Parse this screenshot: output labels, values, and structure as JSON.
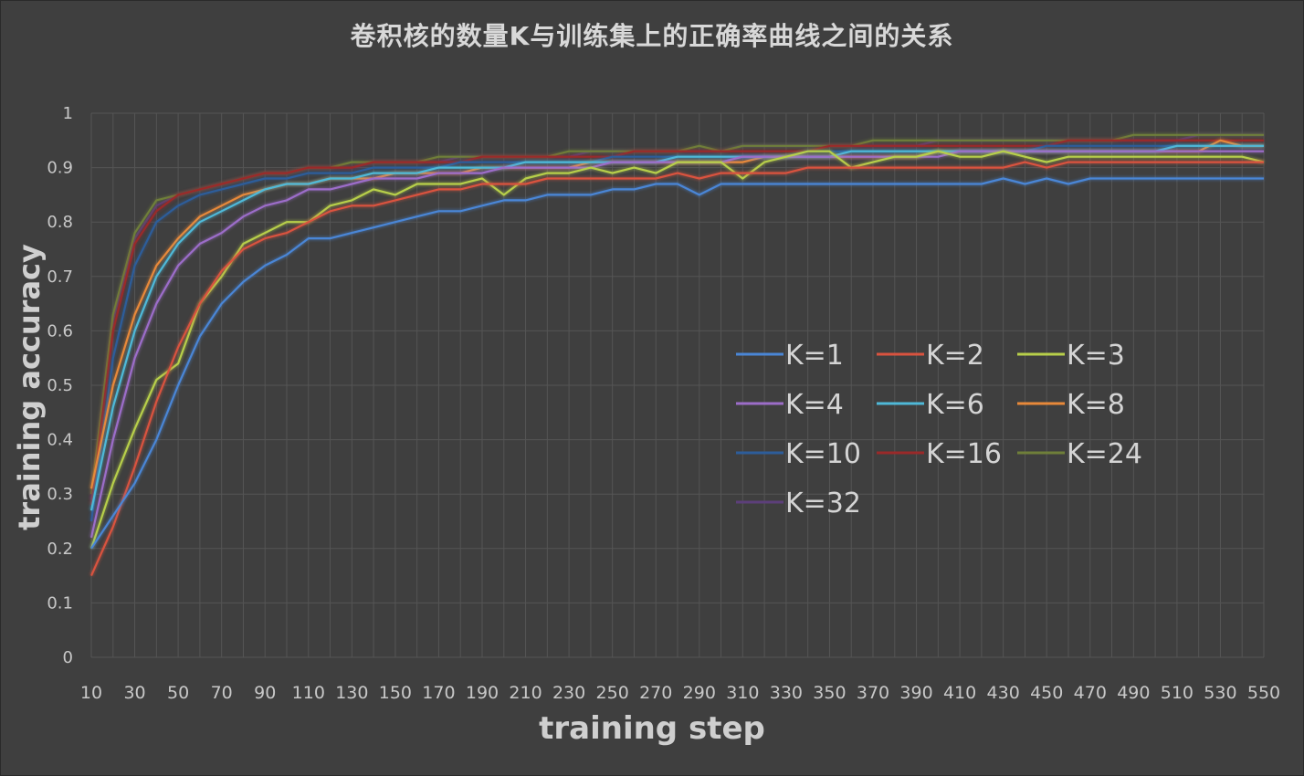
{
  "chart_data": {
    "type": "line",
    "title": "卷积核的数量K与训练集上的正确率曲线之间的关系",
    "xlabel": "training step",
    "ylabel": "training accuracy",
    "ylim": [
      0,
      1
    ],
    "yticks": [
      "0",
      "0.1",
      "0.2",
      "0.3",
      "0.4",
      "0.5",
      "0.6",
      "0.7",
      "0.8",
      "0.9",
      "1"
    ],
    "xtick_labels": [
      "10",
      "30",
      "50",
      "70",
      "90",
      "110",
      "130",
      "150",
      "170",
      "190",
      "210",
      "230",
      "250",
      "270",
      "290",
      "310",
      "330",
      "350",
      "370",
      "390",
      "410",
      "430",
      "450",
      "470",
      "490",
      "510",
      "530",
      "550"
    ],
    "grid": true,
    "legend_position": "center-right",
    "x": [
      10,
      20,
      30,
      40,
      50,
      60,
      70,
      80,
      90,
      100,
      110,
      120,
      130,
      140,
      150,
      160,
      170,
      180,
      190,
      200,
      210,
      220,
      230,
      240,
      250,
      260,
      270,
      280,
      290,
      300,
      310,
      320,
      330,
      340,
      350,
      360,
      370,
      380,
      390,
      400,
      410,
      420,
      430,
      440,
      450,
      460,
      470,
      480,
      490,
      500,
      510,
      520,
      530,
      540,
      550
    ],
    "series": [
      {
        "name": "K=1",
        "color": "#4a86d6",
        "values": [
          0.2,
          0.26,
          0.32,
          0.4,
          0.5,
          0.59,
          0.65,
          0.69,
          0.72,
          0.74,
          0.77,
          0.77,
          0.78,
          0.79,
          0.8,
          0.81,
          0.82,
          0.82,
          0.83,
          0.84,
          0.84,
          0.85,
          0.85,
          0.85,
          0.86,
          0.86,
          0.87,
          0.87,
          0.85,
          0.87,
          0.87,
          0.87,
          0.87,
          0.87,
          0.87,
          0.87,
          0.87,
          0.87,
          0.87,
          0.87,
          0.87,
          0.87,
          0.88,
          0.87,
          0.88,
          0.87,
          0.88,
          0.88,
          0.88,
          0.88,
          0.88,
          0.88,
          0.88,
          0.88,
          0.88
        ]
      },
      {
        "name": "K=2",
        "color": "#d9533f",
        "values": [
          0.15,
          0.24,
          0.35,
          0.47,
          0.57,
          0.65,
          0.71,
          0.75,
          0.77,
          0.78,
          0.8,
          0.82,
          0.83,
          0.83,
          0.84,
          0.85,
          0.86,
          0.86,
          0.87,
          0.87,
          0.87,
          0.88,
          0.88,
          0.88,
          0.88,
          0.88,
          0.88,
          0.89,
          0.88,
          0.89,
          0.89,
          0.89,
          0.89,
          0.9,
          0.9,
          0.9,
          0.9,
          0.9,
          0.9,
          0.9,
          0.9,
          0.9,
          0.9,
          0.91,
          0.9,
          0.91,
          0.91,
          0.91,
          0.91,
          0.91,
          0.91,
          0.91,
          0.91,
          0.91,
          0.91
        ]
      },
      {
        "name": "K=3",
        "color": "#b7cf4a",
        "values": [
          0.2,
          0.32,
          0.42,
          0.51,
          0.54,
          0.65,
          0.7,
          0.76,
          0.78,
          0.8,
          0.8,
          0.83,
          0.84,
          0.86,
          0.85,
          0.87,
          0.87,
          0.87,
          0.88,
          0.85,
          0.88,
          0.89,
          0.89,
          0.9,
          0.89,
          0.9,
          0.89,
          0.91,
          0.91,
          0.91,
          0.88,
          0.91,
          0.92,
          0.93,
          0.93,
          0.9,
          0.91,
          0.92,
          0.92,
          0.93,
          0.92,
          0.92,
          0.93,
          0.92,
          0.91,
          0.92,
          0.92,
          0.92,
          0.92,
          0.92,
          0.92,
          0.92,
          0.92,
          0.92,
          0.91
        ]
      },
      {
        "name": "K=4",
        "color": "#9c6dc9",
        "values": [
          0.22,
          0.4,
          0.55,
          0.65,
          0.72,
          0.76,
          0.78,
          0.81,
          0.83,
          0.84,
          0.86,
          0.86,
          0.87,
          0.88,
          0.88,
          0.88,
          0.89,
          0.89,
          0.89,
          0.9,
          0.9,
          0.9,
          0.9,
          0.9,
          0.91,
          0.91,
          0.91,
          0.91,
          0.91,
          0.91,
          0.92,
          0.92,
          0.92,
          0.92,
          0.92,
          0.92,
          0.92,
          0.92,
          0.92,
          0.92,
          0.93,
          0.93,
          0.93,
          0.93,
          0.93,
          0.93,
          0.93,
          0.93,
          0.93,
          0.93,
          0.93,
          0.93,
          0.93,
          0.93,
          0.93
        ]
      },
      {
        "name": "K=6",
        "color": "#4fb9d8",
        "values": [
          0.27,
          0.46,
          0.6,
          0.7,
          0.76,
          0.8,
          0.82,
          0.84,
          0.86,
          0.87,
          0.87,
          0.88,
          0.88,
          0.89,
          0.89,
          0.89,
          0.9,
          0.9,
          0.9,
          0.9,
          0.91,
          0.91,
          0.91,
          0.91,
          0.91,
          0.91,
          0.91,
          0.92,
          0.92,
          0.92,
          0.92,
          0.92,
          0.92,
          0.92,
          0.92,
          0.93,
          0.93,
          0.93,
          0.93,
          0.93,
          0.93,
          0.93,
          0.93,
          0.93,
          0.93,
          0.93,
          0.93,
          0.93,
          0.93,
          0.93,
          0.94,
          0.94,
          0.94,
          0.94,
          0.94
        ]
      },
      {
        "name": "K=8",
        "color": "#e8893a",
        "values": [
          0.31,
          0.5,
          0.63,
          0.72,
          0.77,
          0.81,
          0.83,
          0.85,
          0.86,
          0.87,
          0.87,
          0.88,
          0.88,
          0.88,
          0.89,
          0.89,
          0.89,
          0.89,
          0.9,
          0.9,
          0.9,
          0.9,
          0.9,
          0.91,
          0.91,
          0.91,
          0.91,
          0.91,
          0.91,
          0.91,
          0.91,
          0.92,
          0.92,
          0.92,
          0.92,
          0.92,
          0.92,
          0.92,
          0.92,
          0.93,
          0.93,
          0.93,
          0.93,
          0.93,
          0.93,
          0.93,
          0.93,
          0.93,
          0.93,
          0.93,
          0.93,
          0.93,
          0.95,
          0.94,
          0.94
        ]
      },
      {
        "name": "K=10",
        "color": "#2d5d9a",
        "values": [
          0.25,
          0.55,
          0.72,
          0.8,
          0.83,
          0.85,
          0.86,
          0.87,
          0.88,
          0.88,
          0.89,
          0.89,
          0.89,
          0.9,
          0.9,
          0.9,
          0.9,
          0.91,
          0.91,
          0.91,
          0.91,
          0.91,
          0.91,
          0.91,
          0.92,
          0.92,
          0.92,
          0.92,
          0.92,
          0.92,
          0.92,
          0.92,
          0.92,
          0.93,
          0.93,
          0.93,
          0.93,
          0.93,
          0.93,
          0.93,
          0.93,
          0.93,
          0.93,
          0.93,
          0.94,
          0.94,
          0.94,
          0.94,
          0.94,
          0.94,
          0.94,
          0.94,
          0.94,
          0.94,
          0.94
        ]
      },
      {
        "name": "K=16",
        "color": "#9a2a2a",
        "values": [
          0.28,
          0.6,
          0.76,
          0.82,
          0.85,
          0.86,
          0.87,
          0.88,
          0.89,
          0.89,
          0.9,
          0.9,
          0.9,
          0.91,
          0.91,
          0.91,
          0.91,
          0.91,
          0.92,
          0.92,
          0.92,
          0.92,
          0.92,
          0.92,
          0.92,
          0.93,
          0.93,
          0.93,
          0.93,
          0.93,
          0.93,
          0.93,
          0.93,
          0.93,
          0.94,
          0.94,
          0.94,
          0.94,
          0.94,
          0.94,
          0.94,
          0.94,
          0.94,
          0.94,
          0.94,
          0.95,
          0.95,
          0.95,
          0.95,
          0.95,
          0.95,
          0.95,
          0.95,
          0.95,
          0.95
        ]
      },
      {
        "name": "K=24",
        "color": "#6f7f3a",
        "values": [
          0.3,
          0.63,
          0.78,
          0.84,
          0.85,
          0.86,
          0.87,
          0.88,
          0.89,
          0.89,
          0.9,
          0.9,
          0.91,
          0.91,
          0.91,
          0.91,
          0.92,
          0.92,
          0.92,
          0.92,
          0.92,
          0.92,
          0.93,
          0.93,
          0.93,
          0.93,
          0.93,
          0.93,
          0.94,
          0.93,
          0.94,
          0.94,
          0.94,
          0.94,
          0.94,
          0.94,
          0.95,
          0.95,
          0.95,
          0.95,
          0.95,
          0.95,
          0.95,
          0.95,
          0.95,
          0.95,
          0.95,
          0.95,
          0.96,
          0.96,
          0.96,
          0.96,
          0.96,
          0.96,
          0.96
        ]
      },
      {
        "name": "K=32",
        "color": "#5c3f7a",
        "values": [
          0.29,
          0.62,
          0.77,
          0.83,
          0.85,
          0.86,
          0.87,
          0.88,
          0.89,
          0.89,
          0.9,
          0.9,
          0.9,
          0.91,
          0.91,
          0.91,
          0.91,
          0.92,
          0.92,
          0.92,
          0.92,
          0.92,
          0.92,
          0.93,
          0.93,
          0.93,
          0.93,
          0.93,
          0.93,
          0.93,
          0.94,
          0.94,
          0.94,
          0.94,
          0.94,
          0.94,
          0.94,
          0.94,
          0.94,
          0.95,
          0.95,
          0.95,
          0.95,
          0.95,
          0.95,
          0.95,
          0.95,
          0.95,
          0.95,
          0.95,
          0.95,
          0.96,
          0.96,
          0.96,
          0.96
        ]
      }
    ]
  }
}
